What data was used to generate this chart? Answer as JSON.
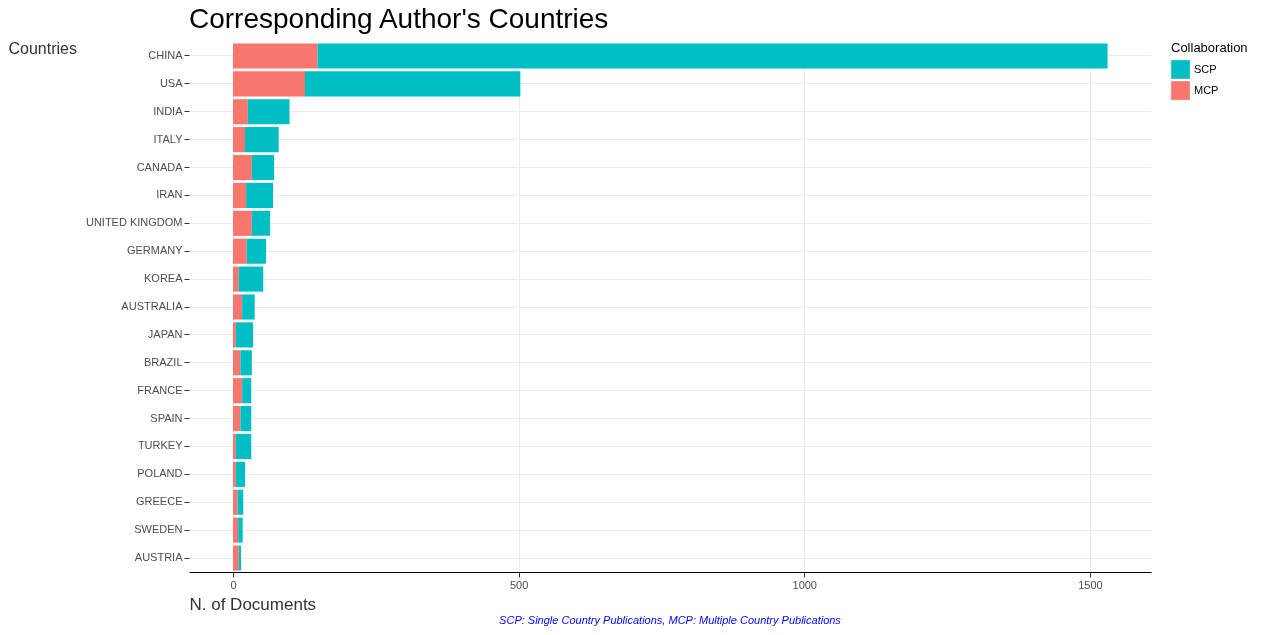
{
  "chart_data": {
    "type": "bar",
    "orientation": "horizontal",
    "stacked": true,
    "title": "Corresponding Author's Countries",
    "xlabel": "N. of Documents",
    "ylabel": "Countries",
    "legend_title": "Collaboration",
    "categories": [
      "CHINA",
      "USA",
      "INDIA",
      "ITALY",
      "CANADA",
      "IRAN",
      "UNITED KINGDOM",
      "GERMANY",
      "KOREA",
      "AUSTRALIA",
      "JAPAN",
      "BRAZIL",
      "FRANCE",
      "SPAIN",
      "TURKEY",
      "POLAND",
      "GREECE",
      "SWEDEN",
      "AUSTRIA"
    ],
    "series": [
      {
        "name": "MCP",
        "color": "#f8766d",
        "values": [
          148,
          126,
          26,
          21,
          33,
          23,
          33,
          24,
          10,
          16,
          5,
          13,
          16,
          13,
          5,
          5,
          8,
          9,
          10
        ]
      },
      {
        "name": "SCP",
        "color": "#00bfc4",
        "values": [
          1383,
          377,
          73,
          59,
          39,
          47,
          32,
          34,
          43,
          22,
          30,
          20,
          16,
          19,
          27,
          16,
          10,
          8,
          4
        ]
      }
    ],
    "xlim": [
      -77,
      1607
    ],
    "xticks": [
      0,
      500,
      1000,
      1500
    ],
    "grid": true,
    "legend": "right",
    "annotations": [
      "SCP: Single Country Publications, MCP: Multiple Country Publications"
    ]
  }
}
